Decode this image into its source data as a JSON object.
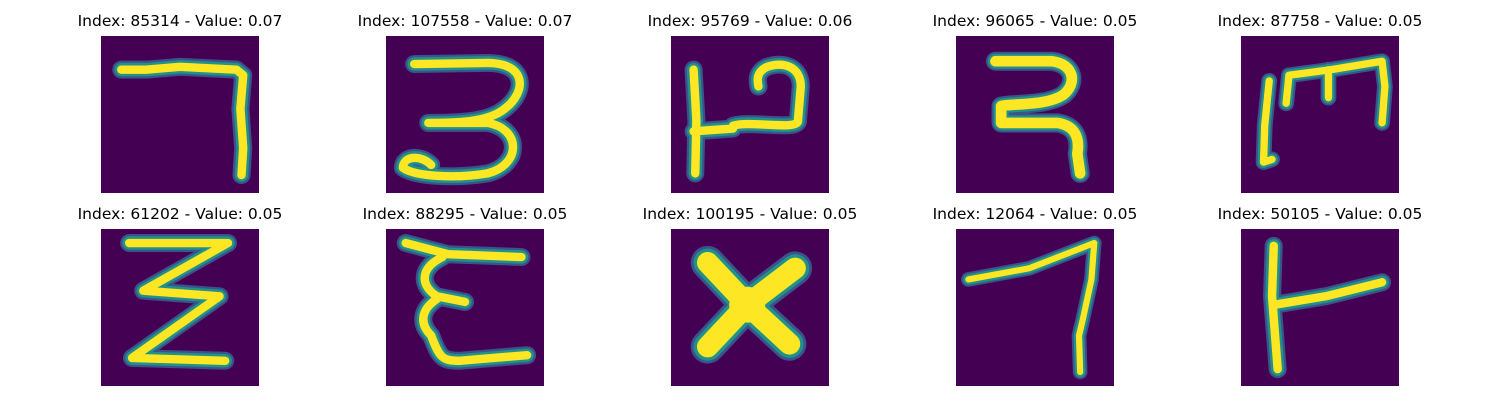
{
  "figure": {
    "background_color": "#440154",
    "stroke_colors": {
      "core": "#fde725",
      "mid": "#5ec962",
      "edge": "#21918c",
      "outer": "#3b528b"
    },
    "panels": [
      {
        "index_label": "Index: 85314 - Value: 0.07",
        "glyph": "seven-like-stroke"
      },
      {
        "index_label": "Index: 107558 - Value: 0.07",
        "glyph": "three-like-stroke"
      },
      {
        "index_label": "Index: 95769 - Value: 0.06",
        "glyph": "p-like-stroke"
      },
      {
        "index_label": "Index: 96065 - Value: 0.05",
        "glyph": "ra-like-stroke"
      },
      {
        "index_label": "Index: 87758 - Value: 0.05",
        "glyph": "m-like-stroke"
      },
      {
        "index_label": "Index: 61202 - Value: 0.05",
        "glyph": "z-like-stroke"
      },
      {
        "index_label": "Index: 88295 - Value: 0.05",
        "glyph": "e-like-stroke"
      },
      {
        "index_label": "Index: 100195 - Value: 0.05",
        "glyph": "x-like-stroke"
      },
      {
        "index_label": "Index: 12064 - Value: 0.05",
        "glyph": "seven-slanted-stroke"
      },
      {
        "index_label": "Index: 50105 - Value: 0.05",
        "glyph": "t-like-stroke"
      }
    ]
  }
}
